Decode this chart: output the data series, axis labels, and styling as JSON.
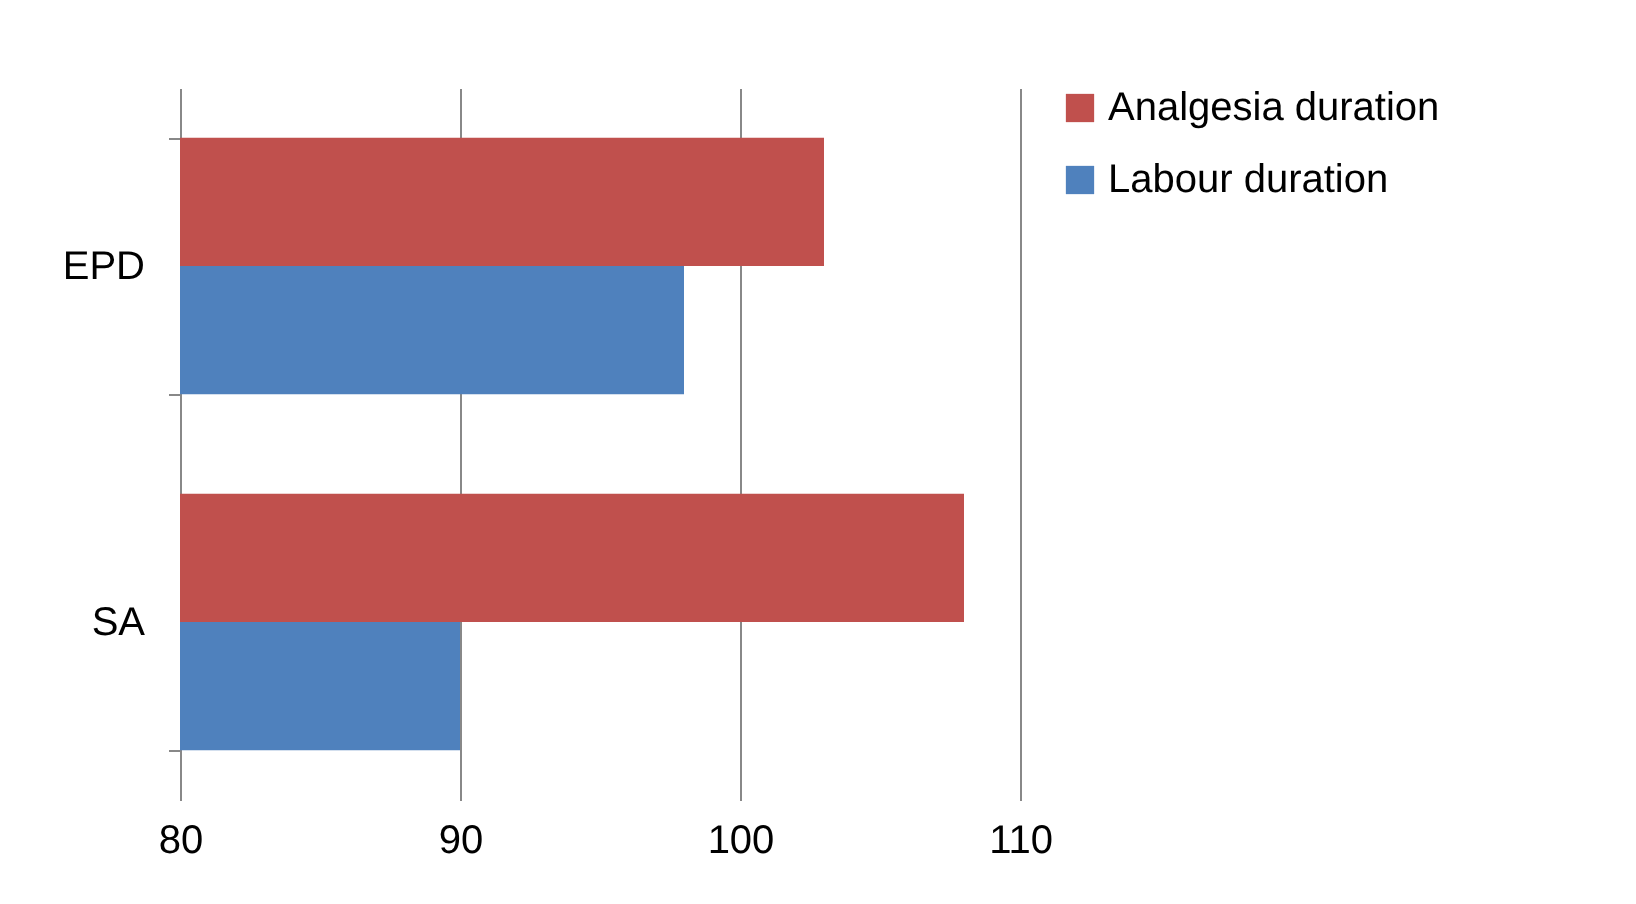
{
  "chart_data": {
    "type": "bar",
    "orientation": "horizontal",
    "categories": [
      "EPD",
      "SA"
    ],
    "series": [
      {
        "name": "Analgesia duration",
        "color": "#c0504d",
        "values": [
          103,
          108
        ]
      },
      {
        "name": "Labour duration",
        "color": "#4f81bd",
        "values": [
          98,
          90
        ]
      }
    ],
    "xlim": [
      80,
      110
    ],
    "xticks": [
      80,
      90,
      100,
      110
    ],
    "grid": "x",
    "legend": "right"
  }
}
